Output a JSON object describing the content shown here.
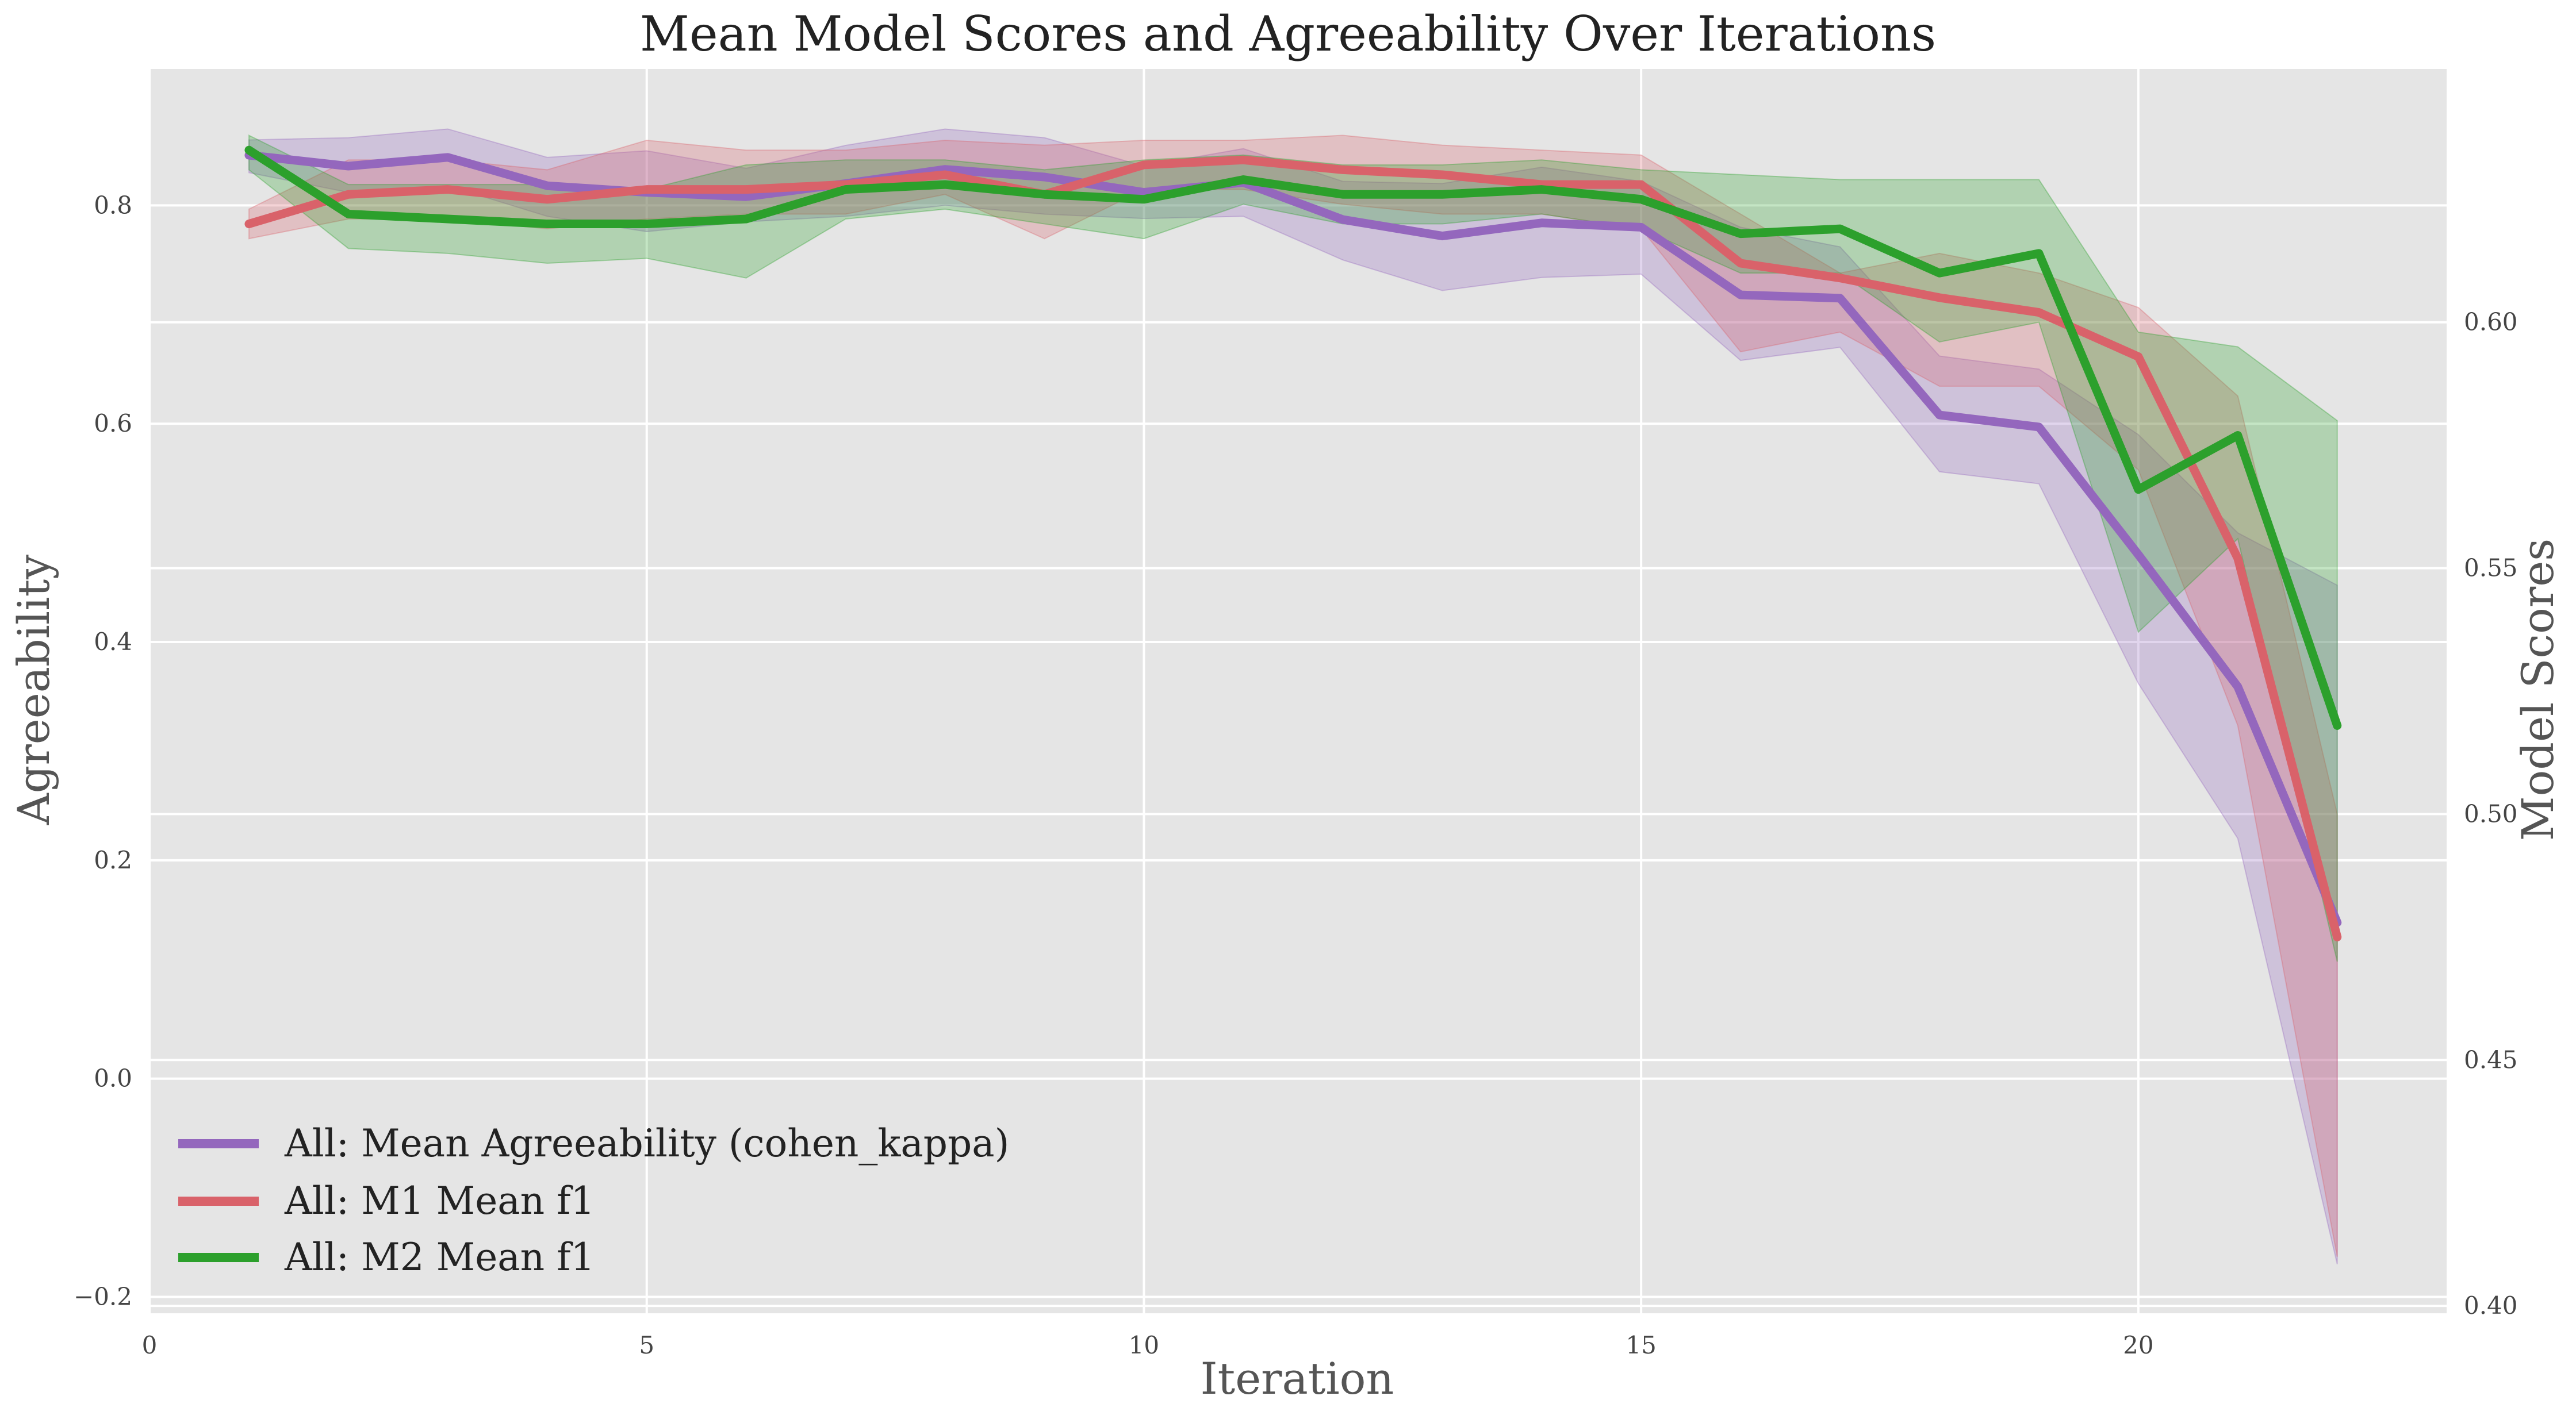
{
  "chart_data": {
    "type": "line",
    "title": "Mean Model Scores and Agreeability Over Iterations",
    "xlabel": "Iteration",
    "ylabel_left": "Agreeability",
    "ylabel_right": "Model Scores",
    "xlim": [
      0,
      23.1
    ],
    "ylim_left": [
      -0.215,
      0.925
    ],
    "ylim_right": [
      0.3985,
      0.6515
    ],
    "x_ticks": [
      0,
      5,
      10,
      15,
      20
    ],
    "y_ticks_left": [
      -0.2,
      0.0,
      0.2,
      0.4,
      0.6,
      0.8
    ],
    "y_tick_labels_left": [
      "−0.2",
      "0.0",
      "0.2",
      "0.4",
      "0.6",
      "0.8"
    ],
    "y_ticks_right": [
      0.4,
      0.45,
      0.5,
      0.55,
      0.6
    ],
    "y_tick_labels_right": [
      "0.40",
      "0.45",
      "0.50",
      "0.55",
      "0.60"
    ],
    "grid": true,
    "legend_position": "lower-left",
    "background_color": "#e5e5e5",
    "x": [
      1,
      2,
      3,
      4,
      5,
      6,
      7,
      8,
      9,
      10,
      11,
      12,
      13,
      14,
      15,
      16,
      17,
      18,
      19,
      20,
      21,
      22
    ],
    "series": [
      {
        "name": "All: Mean Agreeability (cohen_kappa)",
        "axis": "left",
        "color": "#9467bd",
        "values": [
          0.846,
          0.836,
          0.844,
          0.818,
          0.812,
          0.808,
          0.82,
          0.833,
          0.826,
          0.812,
          0.821,
          0.787,
          0.772,
          0.784,
          0.78,
          0.718,
          0.715,
          0.608,
          0.597,
          0.48,
          0.359,
          0.143
        ],
        "lower": [
          0.83,
          0.812,
          0.818,
          0.79,
          0.776,
          0.785,
          0.79,
          0.8,
          0.792,
          0.788,
          0.79,
          0.75,
          0.722,
          0.734,
          0.737,
          0.658,
          0.67,
          0.556,
          0.545,
          0.362,
          0.22,
          -0.17
        ],
        "upper": [
          0.86,
          0.862,
          0.87,
          0.844,
          0.85,
          0.834,
          0.855,
          0.87,
          0.862,
          0.836,
          0.852,
          0.822,
          0.82,
          0.835,
          0.822,
          0.78,
          0.762,
          0.662,
          0.65,
          0.59,
          0.5,
          0.452
        ]
      },
      {
        "name": "All: M1 Mean f1",
        "axis": "right",
        "color": "#d9626a",
        "values": [
          0.62,
          0.626,
          0.627,
          0.625,
          0.627,
          0.627,
          0.628,
          0.63,
          0.626,
          0.632,
          0.633,
          0.631,
          0.63,
          0.628,
          0.628,
          0.612,
          0.609,
          0.605,
          0.602,
          0.593,
          0.552,
          0.475
        ],
        "lower": [
          0.617,
          0.621,
          0.621,
          0.619,
          0.621,
          0.622,
          0.622,
          0.626,
          0.617,
          0.627,
          0.627,
          0.624,
          0.622,
          0.622,
          0.619,
          0.594,
          0.598,
          0.587,
          0.587,
          0.57,
          0.518,
          0.41
        ],
        "upper": [
          0.623,
          0.633,
          0.633,
          0.631,
          0.637,
          0.635,
          0.635,
          0.637,
          0.636,
          0.637,
          0.637,
          0.638,
          0.636,
          0.635,
          0.634,
          0.622,
          0.61,
          0.614,
          0.61,
          0.603,
          0.585,
          0.5
        ]
      },
      {
        "name": "All: M2 Mean f1",
        "axis": "right",
        "color": "#2ca02c",
        "values": [
          0.635,
          0.622,
          0.621,
          0.62,
          0.62,
          0.621,
          0.627,
          0.628,
          0.626,
          0.625,
          0.629,
          0.626,
          0.626,
          0.627,
          0.625,
          0.618,
          0.619,
          0.61,
          0.614,
          0.566,
          0.577,
          0.518
        ],
        "lower": [
          0.631,
          0.615,
          0.614,
          0.612,
          0.613,
          0.609,
          0.621,
          0.623,
          0.62,
          0.617,
          0.624,
          0.62,
          0.62,
          0.622,
          0.619,
          0.61,
          0.61,
          0.596,
          0.6,
          0.537,
          0.556,
          0.47
        ],
        "upper": [
          0.638,
          0.628,
          0.628,
          0.628,
          0.627,
          0.632,
          0.633,
          0.633,
          0.631,
          0.633,
          0.634,
          0.632,
          0.632,
          0.633,
          0.631,
          0.63,
          0.629,
          0.629,
          0.629,
          0.598,
          0.595,
          0.58
        ]
      }
    ]
  }
}
